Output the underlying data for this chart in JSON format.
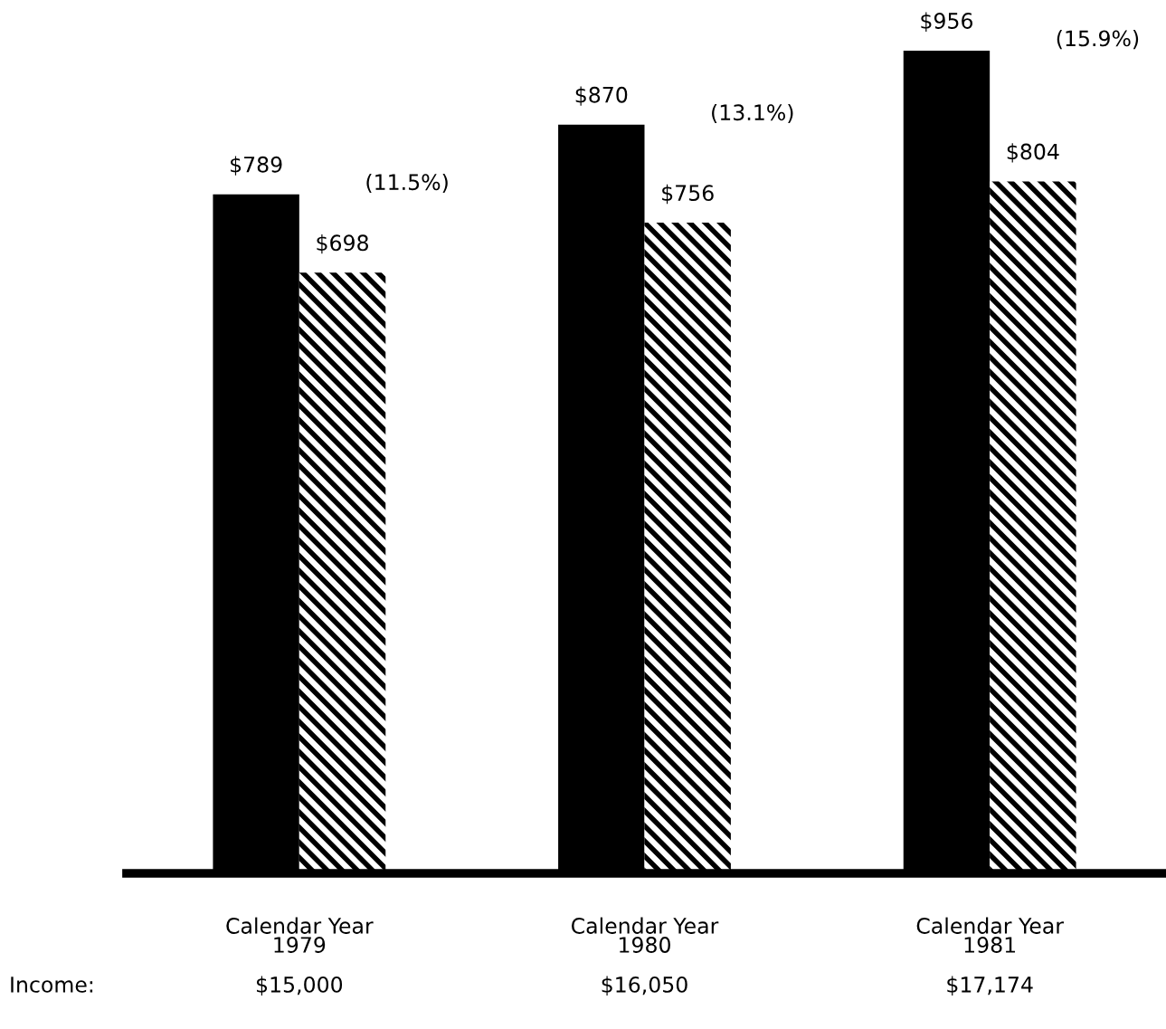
{
  "chart_data": {
    "type": "bar",
    "categories": [
      "Calendar Year\n1979",
      "Calendar Year\n1980",
      "Calendar Year\n1981"
    ],
    "series": [
      {
        "color": "#000000",
        "values": [
          789,
          870,
          956
        ],
        "value_labels": [
          "$789",
          "$870",
          "$956"
        ]
      },
      {
        "color": "#000000",
        "values": [
          698,
          756,
          804
        ],
        "value_labels": [
          "$698",
          "$756",
          "$804"
        ]
      }
    ],
    "annotations": [
      "(11.5%)",
      "(13.1%)",
      "(15.9%)",
      "Income:",
      "$15,000",
      "$16,050",
      "$17,174"
    ],
    "grid": false
  }
}
